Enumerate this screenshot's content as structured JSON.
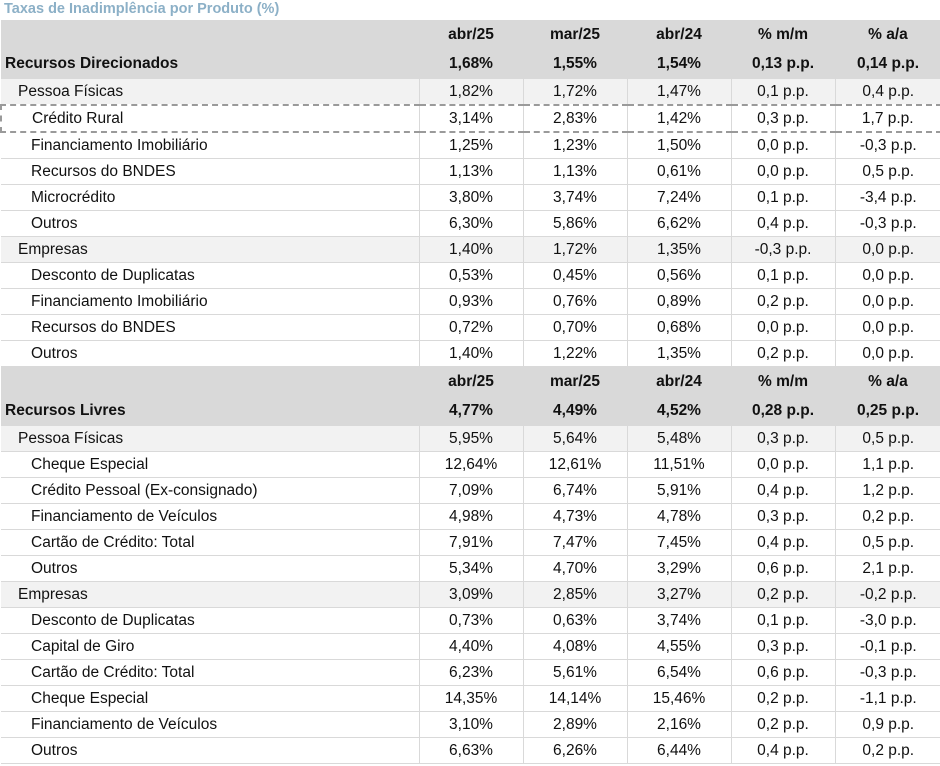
{
  "title": "Taxas de Inadimplência por Produto (%)",
  "headers": [
    "abr/25",
    "mar/25",
    "abr/24",
    "% m/m",
    "% a/a"
  ],
  "sections": [
    {
      "label": "Recursos Direcionados",
      "values": [
        "1,68%",
        "1,55%",
        "1,54%",
        "0,13 p.p.",
        "0,14 p.p."
      ],
      "groups": [
        {
          "label": "Pessoa Físicas",
          "values": [
            "1,82%",
            "1,72%",
            "1,47%",
            "0,1 p.p.",
            "0,4 p.p."
          ],
          "items": [
            {
              "label": "Crédito Rural",
              "values": [
                "3,14%",
                "2,83%",
                "1,42%",
                "0,3 p.p.",
                "1,7 p.p."
              ]
            },
            {
              "label": "Financiamento Imobiliário",
              "values": [
                "1,25%",
                "1,23%",
                "1,50%",
                "0,0 p.p.",
                "-0,3 p.p."
              ]
            },
            {
              "label": "Recursos do BNDES",
              "values": [
                "1,13%",
                "1,13%",
                "0,61%",
                "0,0 p.p.",
                "0,5 p.p."
              ]
            },
            {
              "label": "Microcrédito",
              "values": [
                "3,80%",
                "3,74%",
                "7,24%",
                "0,1 p.p.",
                "-3,4 p.p."
              ]
            },
            {
              "label": "Outros",
              "values": [
                "6,30%",
                "5,86%",
                "6,62%",
                "0,4 p.p.",
                "-0,3 p.p."
              ]
            }
          ]
        },
        {
          "label": "Empresas",
          "values": [
            "1,40%",
            "1,72%",
            "1,35%",
            "-0,3 p.p.",
            "0,0 p.p."
          ],
          "items": [
            {
              "label": "Desconto de Duplicatas",
              "values": [
                "0,53%",
                "0,45%",
                "0,56%",
                "0,1 p.p.",
                "0,0 p.p."
              ]
            },
            {
              "label": "Financiamento Imobiliário",
              "values": [
                "0,93%",
                "0,76%",
                "0,89%",
                "0,2 p.p.",
                "0,0 p.p."
              ]
            },
            {
              "label": "Recursos do BNDES",
              "values": [
                "0,72%",
                "0,70%",
                "0,68%",
                "0,0 p.p.",
                "0,0 p.p."
              ]
            },
            {
              "label": "Outros",
              "values": [
                "1,40%",
                "1,22%",
                "1,35%",
                "0,2 p.p.",
                "0,0 p.p."
              ]
            }
          ]
        }
      ]
    },
    {
      "label": "Recursos Livres",
      "values": [
        "4,77%",
        "4,49%",
        "4,52%",
        "0,28 p.p.",
        "0,25 p.p."
      ],
      "groups": [
        {
          "label": "Pessoa Físicas",
          "values": [
            "5,95%",
            "5,64%",
            "5,48%",
            "0,3 p.p.",
            "0,5 p.p."
          ],
          "items": [
            {
              "label": "Cheque Especial",
              "values": [
                "12,64%",
                "12,61%",
                "11,51%",
                "0,0 p.p.",
                "1,1 p.p."
              ]
            },
            {
              "label": "Crédito Pessoal (Ex-consignado)",
              "values": [
                "7,09%",
                "6,74%",
                "5,91%",
                "0,4 p.p.",
                "1,2 p.p."
              ]
            },
            {
              "label": "Financiamento de Veículos",
              "values": [
                "4,98%",
                "4,73%",
                "4,78%",
                "0,3 p.p.",
                "0,2 p.p."
              ]
            },
            {
              "label": "Cartão de Crédito: Total",
              "values": [
                "7,91%",
                "7,47%",
                "7,45%",
                "0,4 p.p.",
                "0,5 p.p."
              ]
            },
            {
              "label": "Outros",
              "values": [
                "5,34%",
                "4,70%",
                "3,29%",
                "0,6 p.p.",
                "2,1 p.p."
              ]
            }
          ]
        },
        {
          "label": "Empresas",
          "values": [
            "3,09%",
            "2,85%",
            "3,27%",
            "0,2 p.p.",
            "-0,2 p.p."
          ],
          "items": [
            {
              "label": "Desconto de Duplicatas",
              "values": [
                "0,73%",
                "0,63%",
                "3,74%",
                "0,1 p.p.",
                "-3,0 p.p."
              ]
            },
            {
              "label": "Capital de Giro",
              "values": [
                "4,40%",
                "4,08%",
                "4,55%",
                "0,3 p.p.",
                "-0,1 p.p."
              ]
            },
            {
              "label": "Cartão de Crédito: Total",
              "values": [
                "6,23%",
                "5,61%",
                "6,54%",
                "0,6 p.p.",
                "-0,3 p.p."
              ]
            },
            {
              "label": "Cheque Especial",
              "values": [
                "14,35%",
                "14,14%",
                "15,46%",
                "0,2 p.p.",
                "-1,1 p.p."
              ]
            },
            {
              "label": "Financiamento de Veículos",
              "values": [
                "3,10%",
                "2,89%",
                "2,16%",
                "0,2 p.p.",
                "0,9 p.p."
              ]
            },
            {
              "label": "Outros",
              "values": [
                "6,63%",
                "6,26%",
                "6,44%",
                "0,4 p.p.",
                "0,2 p.p."
              ]
            }
          ]
        }
      ]
    }
  ]
}
